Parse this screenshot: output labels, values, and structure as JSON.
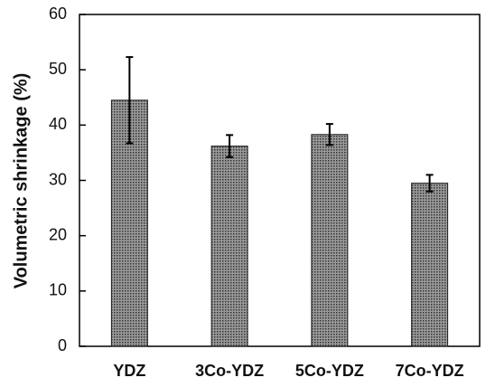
{
  "chart_data": {
    "type": "bar",
    "y_label": "Volumetric shrinkage (%)",
    "categories": [
      "YDZ",
      "3Co-YDZ",
      "5Co-YDZ",
      "7Co-YDZ"
    ],
    "values": [
      44.5,
      36.2,
      38.3,
      29.5
    ],
    "errors": [
      7.8,
      2.0,
      1.9,
      1.5
    ],
    "color": "#8a8a8a",
    "ylim": [
      0,
      60
    ],
    "yticks": [
      0,
      10,
      20,
      30,
      40,
      50,
      60
    ],
    "grid": false
  }
}
